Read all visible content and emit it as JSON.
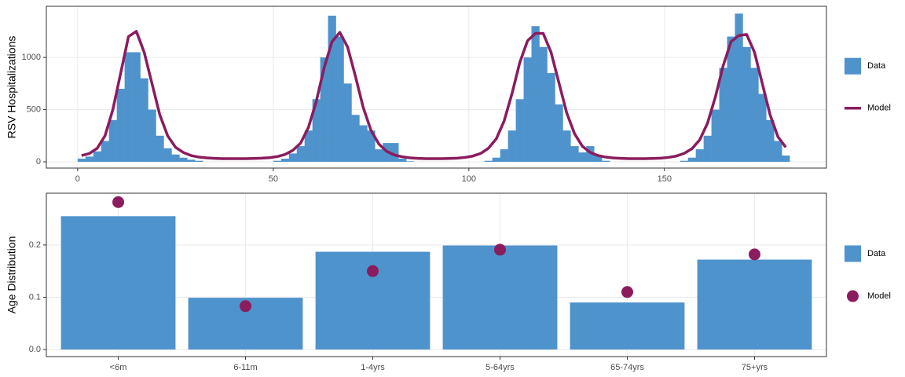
{
  "chart_data": [
    {
      "type": "area",
      "ylabel": "RSV Hospitalizations",
      "grid": true,
      "xlim": [
        -8,
        191.4
      ],
      "xticks": [
        0,
        50,
        100,
        150
      ],
      "ylim": [
        -60,
        1490
      ],
      "yticks": [
        0,
        500,
        1000
      ],
      "x": [
        1,
        3,
        5,
        7,
        9,
        11,
        13,
        15,
        17,
        19,
        21,
        23,
        25,
        27,
        29,
        31,
        33,
        35,
        37,
        39,
        41,
        43,
        45,
        47,
        49,
        51,
        53,
        55,
        57,
        59,
        61,
        63,
        65,
        67,
        69,
        71,
        73,
        75,
        77,
        79,
        81,
        83,
        85,
        87,
        89,
        91,
        93,
        95,
        97,
        99,
        101,
        103,
        105,
        107,
        109,
        111,
        113,
        115,
        117,
        119,
        121,
        123,
        125,
        127,
        129,
        131,
        133,
        135,
        137,
        139,
        141,
        143,
        145,
        147,
        149,
        151,
        153,
        155,
        157,
        159,
        161,
        163,
        165,
        167,
        169,
        171,
        173,
        175,
        177,
        179,
        181
      ],
      "series": [
        {
          "name": "Data",
          "mark": "bar",
          "color": "#4f93cd",
          "values": [
            30,
            50,
            100,
            200,
            400,
            700,
            1050,
            1050,
            800,
            500,
            250,
            130,
            70,
            40,
            20,
            10,
            0,
            0,
            0,
            0,
            0,
            0,
            0,
            0,
            0,
            10,
            30,
            80,
            150,
            300,
            600,
            1000,
            1400,
            1200,
            750,
            450,
            350,
            300,
            120,
            180,
            180,
            30,
            5,
            0,
            0,
            0,
            0,
            0,
            0,
            0,
            0,
            0,
            10,
            40,
            120,
            300,
            600,
            1000,
            1300,
            1100,
            850,
            550,
            300,
            150,
            90,
            150,
            60,
            10,
            0,
            0,
            0,
            0,
            0,
            0,
            0,
            0,
            0,
            10,
            40,
            120,
            250,
            500,
            900,
            1200,
            1420,
            1100,
            900,
            650,
            400,
            200,
            60
          ]
        },
        {
          "name": "Model",
          "mark": "line",
          "color": "#8b1c5e",
          "values": [
            60,
            80,
            130,
            250,
            500,
            850,
            1200,
            1250,
            1050,
            750,
            450,
            250,
            140,
            90,
            60,
            45,
            38,
            33,
            30,
            30,
            30,
            30,
            32,
            35,
            40,
            50,
            70,
            110,
            180,
            330,
            580,
            900,
            1150,
            1240,
            1100,
            820,
            520,
            300,
            170,
            100,
            65,
            48,
            38,
            33,
            30,
            30,
            30,
            32,
            35,
            42,
            55,
            80,
            130,
            220,
            390,
            650,
            950,
            1160,
            1230,
            1230,
            1050,
            760,
            470,
            270,
            150,
            90,
            60,
            45,
            37,
            33,
            30,
            30,
            30,
            32,
            35,
            42,
            55,
            80,
            125,
            210,
            370,
            620,
            920,
            1150,
            1210,
            1220,
            1050,
            750,
            450,
            240,
            140
          ]
        }
      ]
    },
    {
      "type": "bar",
      "ylabel": "Age Distribution",
      "grid": true,
      "categories": [
        "<6m",
        "6-11m",
        "1-4yrs",
        "5-64yrs",
        "65-74yrs",
        "75+yrs"
      ],
      "ylim": [
        -0.0135,
        0.299
      ],
      "yticks": [
        {
          "value": 0,
          "label": "0.0"
        },
        {
          "value": 0.1,
          "label": "0.1"
        },
        {
          "value": 0.2,
          "label": "0.2"
        }
      ],
      "series": [
        {
          "name": "Data",
          "mark": "bar",
          "color": "#4f93cd",
          "values": [
            0.255,
            0.099,
            0.187,
            0.199,
            0.09,
            0.172
          ]
        },
        {
          "name": "Model",
          "mark": "point",
          "color": "#8b1c5e",
          "values": [
            0.282,
            0.083,
            0.15,
            0.191,
            0.11,
            0.182
          ]
        }
      ]
    }
  ]
}
